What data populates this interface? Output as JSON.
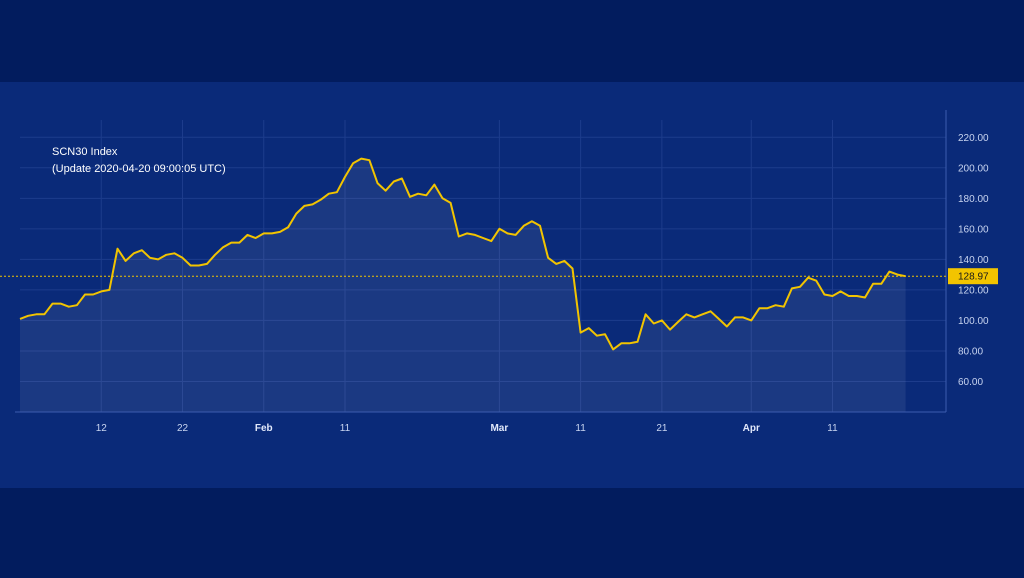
{
  "chart": {
    "title": "SCN30 Index",
    "subtitle": "(Update 2020-04-20 09:00:05 UTC)",
    "last_value_label": "128.97"
  },
  "colors": {
    "background": "#021c5e",
    "panel": "#0a2a79",
    "line": "#f2c400",
    "grid": "#1d3c8c",
    "axis": "#3c5cae",
    "tag": "#f2c400"
  },
  "chart_data": {
    "type": "area",
    "title": "SCN30 Index",
    "subtitle": "(Update 2020-04-20 09:00:05 UTC)",
    "xlabel": "",
    "ylabel": "",
    "y_axis_position": "right",
    "ylim": [
      40,
      230
    ],
    "yticks": [
      60,
      80,
      100,
      120,
      140,
      160,
      180,
      200,
      220
    ],
    "ytick_labels": [
      "60.00",
      "80.00",
      "100.00",
      "120.00",
      "140.00",
      "160.00",
      "180.00",
      "200.00",
      "220.00"
    ],
    "grid": true,
    "xticks": [
      {
        "date": "2020-01-12",
        "label": "12",
        "month": false
      },
      {
        "date": "2020-01-22",
        "label": "22",
        "month": false
      },
      {
        "date": "2020-02-01",
        "label": "Feb",
        "month": true
      },
      {
        "date": "2020-02-11",
        "label": "11",
        "month": false
      },
      {
        "date": "2020-03-01",
        "label": "Mar",
        "month": true
      },
      {
        "date": "2020-03-11",
        "label": "11",
        "month": false
      },
      {
        "date": "2020-03-21",
        "label": "21",
        "month": false
      },
      {
        "date": "2020-04-01",
        "label": "Apr",
        "month": true
      },
      {
        "date": "2020-04-11",
        "label": "11",
        "month": false
      }
    ],
    "xlim": [
      "2020-01-02",
      "2020-04-23"
    ],
    "last_value": 128.97,
    "series": [
      {
        "points": [
          [
            "2020-01-02",
            101
          ],
          [
            "2020-01-03",
            103
          ],
          [
            "2020-01-04",
            104
          ],
          [
            "2020-01-05",
            104
          ],
          [
            "2020-01-06",
            111
          ],
          [
            "2020-01-07",
            111
          ],
          [
            "2020-01-08",
            109
          ],
          [
            "2020-01-09",
            110
          ],
          [
            "2020-01-10",
            117
          ],
          [
            "2020-01-11",
            117
          ],
          [
            "2020-01-12",
            119
          ],
          [
            "2020-01-13",
            120
          ],
          [
            "2020-01-14",
            147
          ],
          [
            "2020-01-15",
            139
          ],
          [
            "2020-01-16",
            144
          ],
          [
            "2020-01-17",
            146
          ],
          [
            "2020-01-18",
            141
          ],
          [
            "2020-01-19",
            140
          ],
          [
            "2020-01-20",
            143
          ],
          [
            "2020-01-21",
            144
          ],
          [
            "2020-01-22",
            141
          ],
          [
            "2020-01-23",
            136
          ],
          [
            "2020-01-24",
            136
          ],
          [
            "2020-01-25",
            137
          ],
          [
            "2020-01-26",
            143
          ],
          [
            "2020-01-27",
            148
          ],
          [
            "2020-01-28",
            151
          ],
          [
            "2020-01-29",
            151
          ],
          [
            "2020-01-30",
            156
          ],
          [
            "2020-01-31",
            154
          ],
          [
            "2020-02-01",
            157
          ],
          [
            "2020-02-02",
            157
          ],
          [
            "2020-02-03",
            158
          ],
          [
            "2020-02-04",
            161
          ],
          [
            "2020-02-05",
            170
          ],
          [
            "2020-02-06",
            175
          ],
          [
            "2020-02-07",
            176
          ],
          [
            "2020-02-08",
            179
          ],
          [
            "2020-02-09",
            183
          ],
          [
            "2020-02-10",
            184
          ],
          [
            "2020-02-11",
            194
          ],
          [
            "2020-02-12",
            203
          ],
          [
            "2020-02-13",
            206
          ],
          [
            "2020-02-14",
            205
          ],
          [
            "2020-02-15",
            190
          ],
          [
            "2020-02-16",
            185
          ],
          [
            "2020-02-17",
            191
          ],
          [
            "2020-02-18",
            193
          ],
          [
            "2020-02-19",
            181
          ],
          [
            "2020-02-20",
            183
          ],
          [
            "2020-02-21",
            182
          ],
          [
            "2020-02-22",
            189
          ],
          [
            "2020-02-23",
            180
          ],
          [
            "2020-02-24",
            177
          ],
          [
            "2020-02-25",
            155
          ],
          [
            "2020-02-26",
            157
          ],
          [
            "2020-02-27",
            156
          ],
          [
            "2020-02-28",
            154
          ],
          [
            "2020-02-29",
            152
          ],
          [
            "2020-03-01",
            160
          ],
          [
            "2020-03-02",
            157
          ],
          [
            "2020-03-03",
            156
          ],
          [
            "2020-03-04",
            162
          ],
          [
            "2020-03-05",
            165
          ],
          [
            "2020-03-06",
            162
          ],
          [
            "2020-03-07",
            141
          ],
          [
            "2020-03-08",
            137
          ],
          [
            "2020-03-09",
            139
          ],
          [
            "2020-03-10",
            134
          ],
          [
            "2020-03-11",
            92
          ],
          [
            "2020-03-12",
            95
          ],
          [
            "2020-03-13",
            90
          ],
          [
            "2020-03-14",
            91
          ],
          [
            "2020-03-15",
            81
          ],
          [
            "2020-03-16",
            85
          ],
          [
            "2020-03-17",
            85
          ],
          [
            "2020-03-18",
            86
          ],
          [
            "2020-03-19",
            104
          ],
          [
            "2020-03-20",
            98
          ],
          [
            "2020-03-21",
            100
          ],
          [
            "2020-03-22",
            94
          ],
          [
            "2020-03-23",
            99
          ],
          [
            "2020-03-24",
            104
          ],
          [
            "2020-03-25",
            102
          ],
          [
            "2020-03-26",
            104
          ],
          [
            "2020-03-27",
            106
          ],
          [
            "2020-03-28",
            101
          ],
          [
            "2020-03-29",
            96
          ],
          [
            "2020-03-30",
            102
          ],
          [
            "2020-03-31",
            102
          ],
          [
            "2020-04-01",
            100
          ],
          [
            "2020-04-02",
            108
          ],
          [
            "2020-04-03",
            108
          ],
          [
            "2020-04-04",
            110
          ],
          [
            "2020-04-05",
            109
          ],
          [
            "2020-04-06",
            121
          ],
          [
            "2020-04-07",
            122
          ],
          [
            "2020-04-08",
            128
          ],
          [
            "2020-04-09",
            126
          ],
          [
            "2020-04-10",
            117
          ],
          [
            "2020-04-11",
            116
          ],
          [
            "2020-04-12",
            119
          ],
          [
            "2020-04-13",
            116
          ],
          [
            "2020-04-14",
            116
          ],
          [
            "2020-04-15",
            115
          ],
          [
            "2020-04-16",
            124
          ],
          [
            "2020-04-17",
            124
          ],
          [
            "2020-04-18",
            132
          ],
          [
            "2020-04-19",
            130
          ],
          [
            "2020-04-20",
            129
          ]
        ]
      }
    ]
  }
}
